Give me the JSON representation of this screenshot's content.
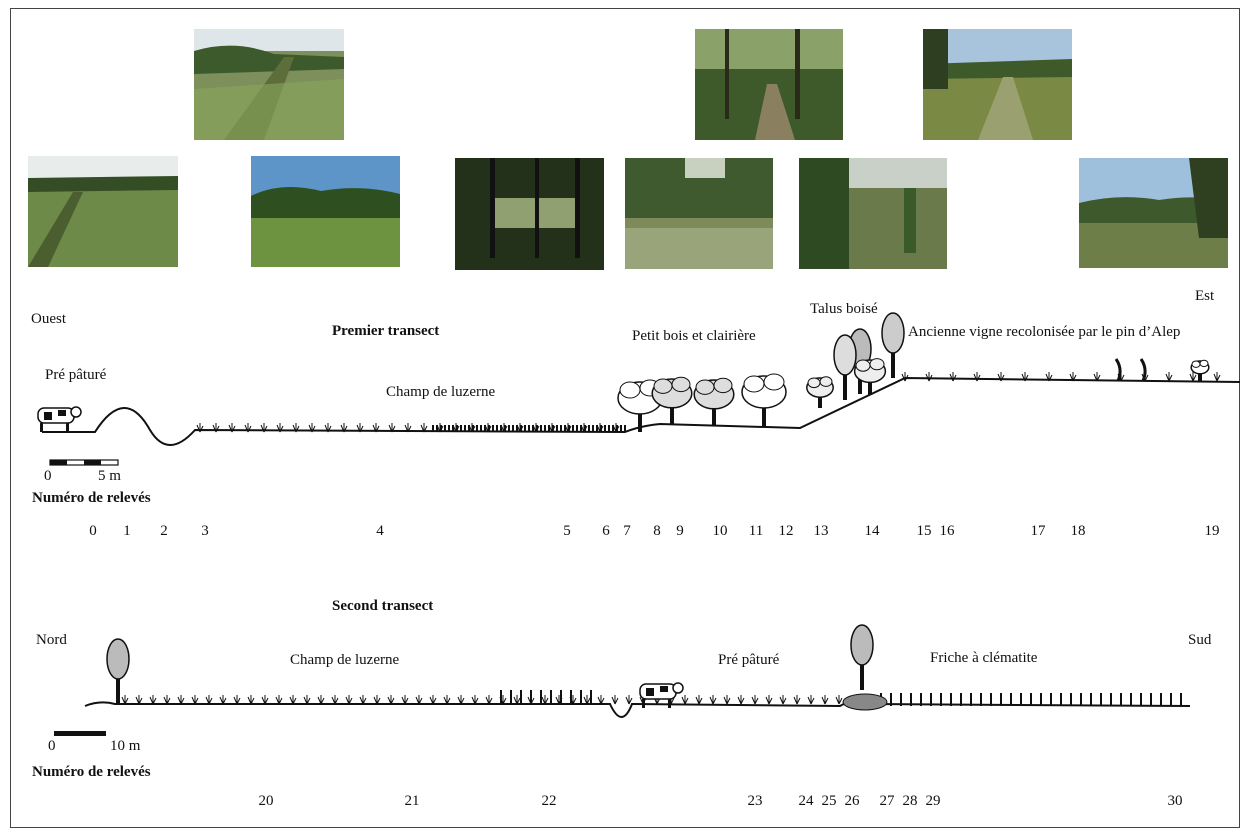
{
  "transect1": {
    "title": "Premier transect",
    "direction_left": "Ouest",
    "direction_right": "Est",
    "habitats": {
      "pre_pature": "Pré pâturé",
      "champ_luzerne": "Champ de luzerne",
      "petit_bois": "Petit bois et clairière",
      "talus_boise": "Talus boisé",
      "ancienne_vigne": "Ancienne vigne recolonisée par le pin d’Alep"
    },
    "scale": {
      "zero": "0",
      "end": "5 m"
    },
    "releves_heading": "Numéro de relevés",
    "releves": [
      "0",
      "1",
      "2",
      "3",
      "4",
      "5",
      "6",
      "7",
      "8",
      "9",
      "10",
      "11",
      "12",
      "13",
      "14",
      "15",
      "16",
      "17",
      "18",
      "19"
    ]
  },
  "transect2": {
    "title": "Second transect",
    "direction_left": "Nord",
    "direction_right": "Sud",
    "habitats": {
      "champ_luzerne": "Champ de luzerne",
      "pre_pature": "Pré pâturé",
      "friche": "Friche à clématite"
    },
    "scale": {
      "zero": "0",
      "end": "10 m"
    },
    "releves_heading": "Numéro de relevés",
    "releves": [
      "20",
      "21",
      "22",
      "23",
      "24",
      "25",
      "26",
      "27",
      "28",
      "29",
      "30"
    ]
  },
  "photos": [
    {
      "name": "photo-hedge-meadow",
      "scene": "hedge-grass"
    },
    {
      "name": "photo-wooded-path",
      "scene": "forest-path"
    },
    {
      "name": "photo-vineyard-track",
      "scene": "track"
    },
    {
      "name": "photo-grazed-meadow",
      "scene": "meadow-hedge"
    },
    {
      "name": "photo-alfalfa-field",
      "scene": "field-sky"
    },
    {
      "name": "photo-small-wood",
      "scene": "dark-wood"
    },
    {
      "name": "photo-clearing",
      "scene": "clearing"
    },
    {
      "name": "photo-wooded-bank",
      "scene": "bank"
    },
    {
      "name": "photo-recolonized-vineyard",
      "scene": "open-sky"
    }
  ],
  "colors": {
    "ink": "#111111",
    "grey_tree": "#9a9a9a",
    "light_tree": "#c8c8c8"
  }
}
